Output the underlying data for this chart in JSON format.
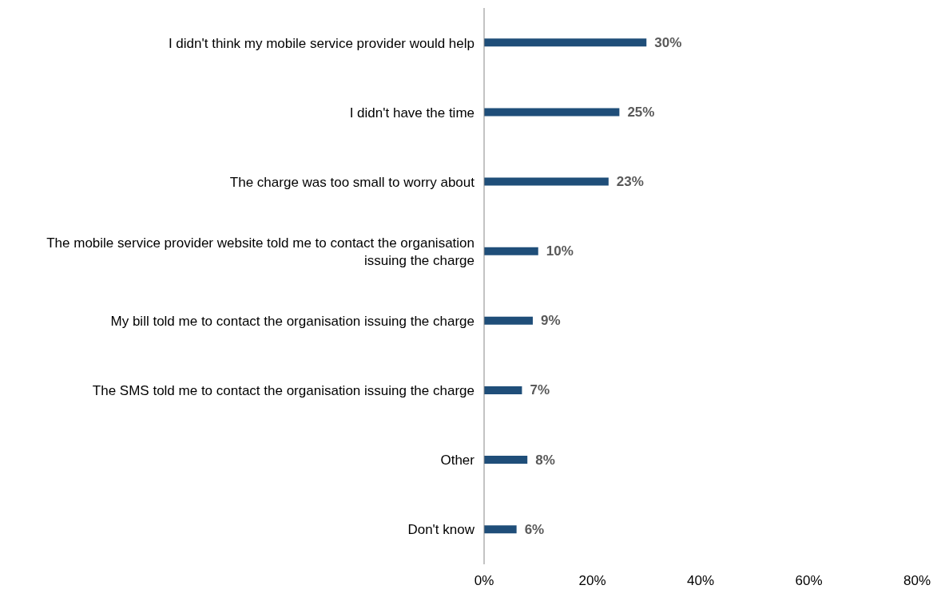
{
  "chart_data": {
    "type": "bar",
    "orientation": "horizontal",
    "categories": [
      "I didn't think my mobile service provider would help",
      "I didn't have the time",
      "The charge was too small to worry about",
      "The mobile service provider website told me to contact the organisation issuing the charge",
      "My bill told me to contact the organisation issuing the charge",
      "The SMS told me to contact the organisation issuing the charge",
      "Other",
      "Don't know"
    ],
    "values": [
      30,
      25,
      23,
      10,
      9,
      7,
      8,
      6
    ],
    "value_labels": [
      "30%",
      "25%",
      "23%",
      "10%",
      "9%",
      "7%",
      "8%",
      "6%"
    ],
    "color": "#1f4e79",
    "xlim": [
      0,
      80
    ],
    "xticks": [
      {
        "value": 0,
        "label": "0%"
      },
      {
        "value": 20,
        "label": "20%"
      },
      {
        "value": 40,
        "label": "40%"
      },
      {
        "value": 60,
        "label": "60%"
      },
      {
        "value": 80,
        "label": "80%"
      }
    ],
    "grid": false,
    "legend": false
  }
}
